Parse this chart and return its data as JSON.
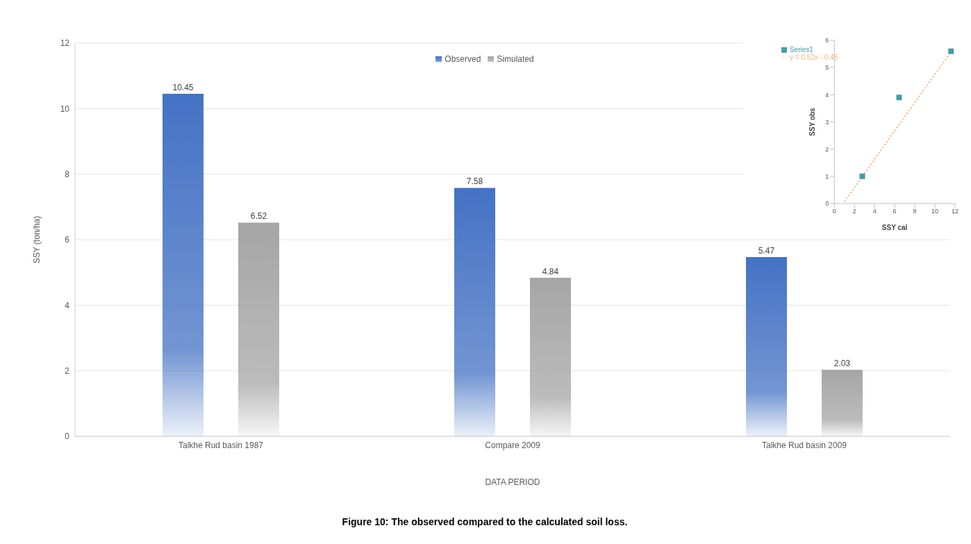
{
  "chart_data": [
    {
      "type": "bar",
      "title": "Figure 10: The observed compared to the calculated soil loss.",
      "xlabel": "DATA PERIOD",
      "ylabel": "SSY (ton/ha)",
      "categories": [
        "Talkhe Rud basin 1987",
        "Compare 2009",
        "Talkhe Rud basin 2009"
      ],
      "series": [
        {
          "name": "Observed",
          "color": "#4472c4",
          "values": [
            10.45,
            7.58,
            5.47
          ]
        },
        {
          "name": "Simulated",
          "color": "#a5a5a5",
          "values": [
            6.52,
            4.84,
            2.03
          ]
        }
      ],
      "ylim": [
        0,
        12
      ],
      "yticks": [
        0,
        2,
        4,
        6,
        8,
        10,
        12
      ],
      "grid": "y",
      "legend": "top",
      "data_labels": true
    },
    {
      "type": "scatter",
      "xlabel": "SSY cal",
      "ylabel": "SSY obs",
      "series": [
        {
          "name": "Series1",
          "color": "#4a9aa5",
          "marker": "square",
          "x": [
            2.78,
            6.44,
            11.6
          ],
          "values": [
            1,
            3.9,
            5.6
          ]
        },
        {
          "name": "y = 0.52x - 0.45",
          "type": "line",
          "color": "#f4b183",
          "line_style": "dotted",
          "x": [
            1,
            11.6
          ],
          "values": [
            0.07,
            5.58
          ]
        }
      ],
      "xlim": [
        0,
        12
      ],
      "xticks": [
        0,
        2,
        4,
        6,
        8,
        10,
        12
      ],
      "ylim": [
        0,
        6
      ],
      "yticks": [
        0,
        1,
        2,
        3,
        4,
        5,
        6
      ],
      "legend": "top left"
    }
  ]
}
